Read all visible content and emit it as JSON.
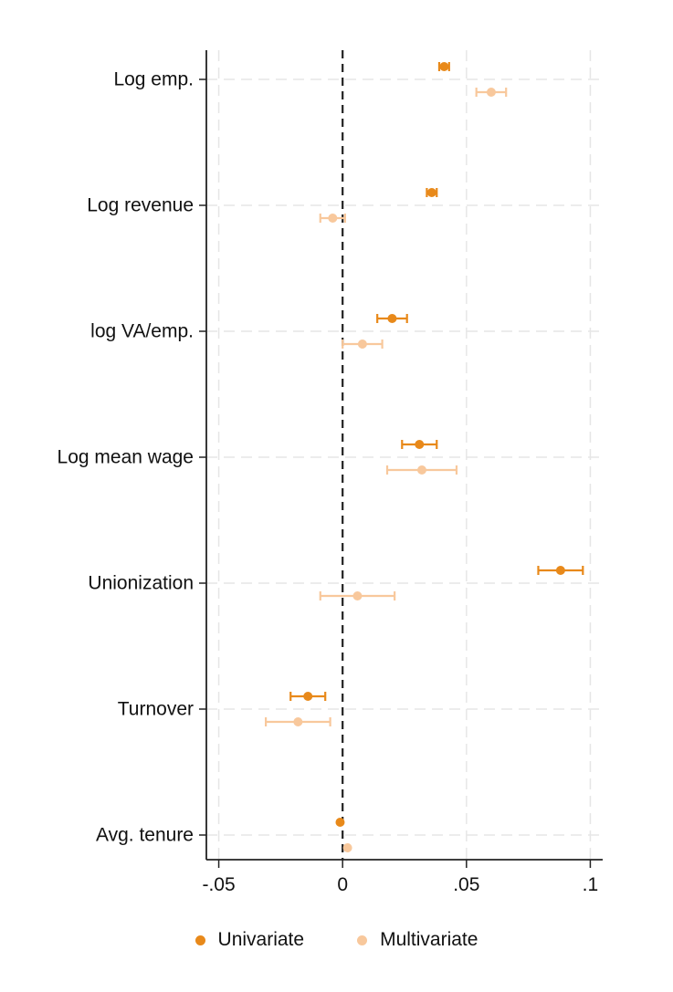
{
  "chart_data": {
    "type": "scatter",
    "subtype": "coefficient-plot-with-confidence-intervals",
    "orientation": "horizontal",
    "categories": [
      "Log emp.",
      "Log revenue",
      "log VA/emp.",
      "Log mean wage",
      "Unionization",
      "Turnover",
      "Avg. tenure"
    ],
    "series": [
      {
        "name": "Univariate",
        "color": "#e8891a",
        "estimates": [
          0.041,
          0.036,
          0.02,
          0.031,
          0.088,
          -0.014,
          -0.001
        ],
        "ci_low": [
          0.039,
          0.034,
          0.014,
          0.024,
          0.079,
          -0.021,
          -0.001
        ],
        "ci_high": [
          0.043,
          0.038,
          0.026,
          0.038,
          0.097,
          -0.007,
          -0.001
        ]
      },
      {
        "name": "Multivariate",
        "color": "#f8c89c",
        "estimates": [
          0.06,
          -0.004,
          0.008,
          0.032,
          0.006,
          -0.018,
          0.002
        ],
        "ci_low": [
          0.054,
          -0.009,
          0.0,
          0.018,
          -0.009,
          -0.031,
          0.002
        ],
        "ci_high": [
          0.066,
          0.001,
          0.016,
          0.046,
          0.021,
          -0.005,
          0.002
        ]
      }
    ],
    "xlim": [
      -0.055,
      0.105
    ],
    "xticks": [
      -0.05,
      0,
      0.05,
      0.1
    ],
    "xtick_labels": [
      "-.05",
      "0",
      ".05",
      ".1"
    ],
    "reference_line": {
      "x": 0,
      "style": "dashed",
      "color": "#222222"
    },
    "grid": true,
    "legend_position": "bottom",
    "title": "",
    "xlabel": "",
    "ylabel": ""
  },
  "legend": {
    "univariate_label": "Univariate",
    "multivariate_label": "Multivariate"
  }
}
